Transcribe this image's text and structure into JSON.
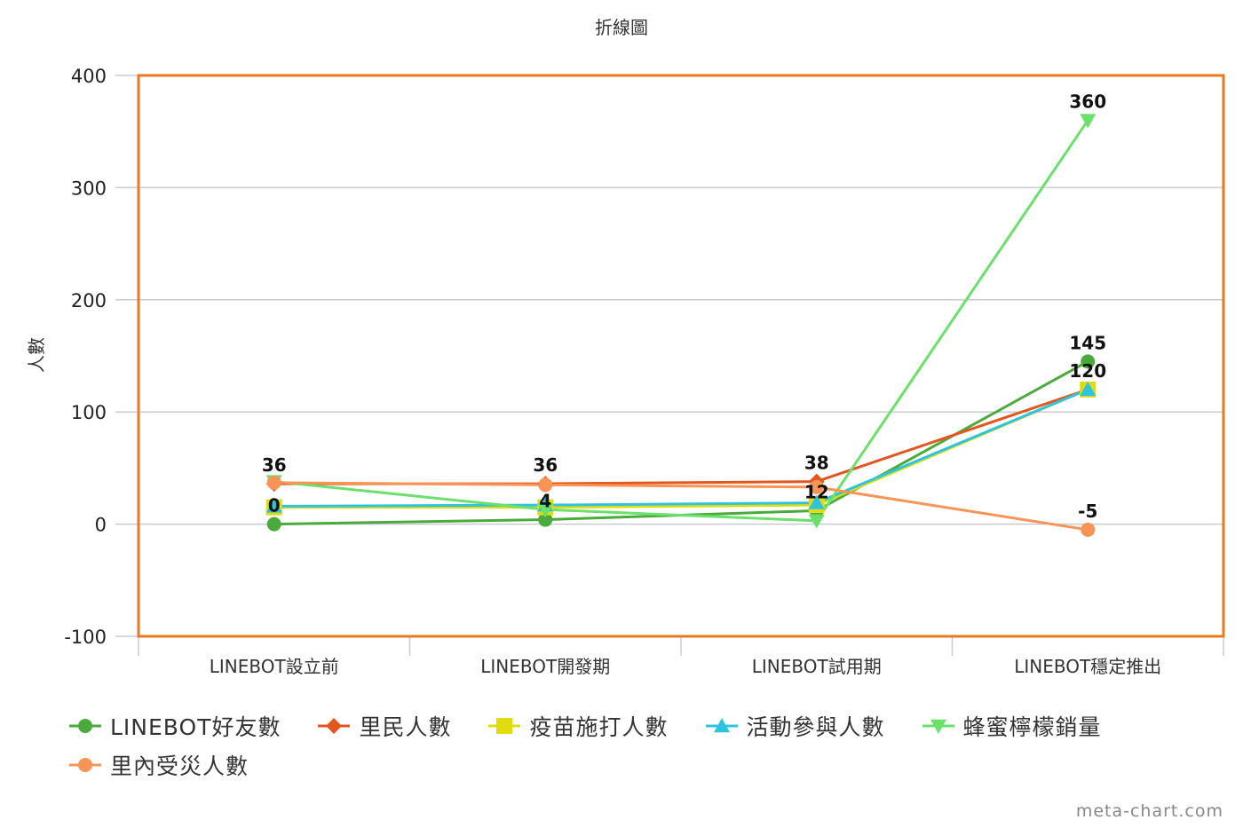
{
  "chart_data": {
    "type": "line",
    "title": "折線圖",
    "xlabel": "",
    "ylabel": "人數",
    "ylim": [
      -100,
      400
    ],
    "yticks": [
      -100,
      0,
      100,
      200,
      300,
      400
    ],
    "grid": true,
    "legend_position": "bottom",
    "categories": [
      "LINEBOT設立前",
      "LINEBOT開發期",
      "LINEBOT試用期",
      "LINEBOT穩定推出"
    ],
    "series": [
      {
        "name": "LINEBOT好友數",
        "color": "#4aab3c",
        "marker": "circle",
        "values": [
          0,
          4,
          12,
          145
        ]
      },
      {
        "name": "里民人數",
        "color": "#e2571e",
        "marker": "diamond",
        "values": [
          36,
          36,
          38,
          120
        ]
      },
      {
        "name": "疫苗施打人數",
        "color": "#e0dc10",
        "marker": "square",
        "values": [
          15,
          15,
          17,
          120
        ]
      },
      {
        "name": "活動參與人數",
        "color": "#2ec4e0",
        "marker": "triangle-up",
        "values": [
          16,
          17,
          19,
          120
        ]
      },
      {
        "name": "蜂蜜檸檬銷量",
        "color": "#6be06b",
        "marker": "triangle-down",
        "values": [
          38,
          13,
          3,
          360
        ]
      },
      {
        "name": "里內受災人數",
        "color": "#f79456",
        "marker": "circle",
        "values": [
          37,
          35,
          33,
          -5
        ]
      }
    ],
    "data_labels": [
      {
        "category": 0,
        "value": 36,
        "text": "36"
      },
      {
        "category": 0,
        "value": 0,
        "text": "0"
      },
      {
        "category": 1,
        "value": 36,
        "text": "36"
      },
      {
        "category": 1,
        "value": 4,
        "text": "4"
      },
      {
        "category": 2,
        "value": 38,
        "text": "38"
      },
      {
        "category": 2,
        "value": 12,
        "text": "12"
      },
      {
        "category": 3,
        "value": 360,
        "text": "360"
      },
      {
        "category": 3,
        "value": 145,
        "text": "145"
      },
      {
        "category": 3,
        "value": 120,
        "text": "120"
      },
      {
        "category": 3,
        "value": -5,
        "text": "-5"
      }
    ],
    "frame_color": "#ee7722"
  },
  "watermark": "meta-chart.com"
}
